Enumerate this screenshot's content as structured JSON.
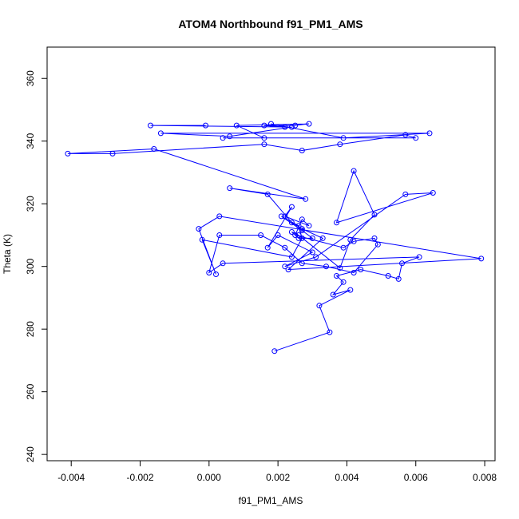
{
  "chart_data": {
    "type": "line",
    "title": "ATOM4 Northbound f91_PM1_AMS",
    "xlabel": "f91_PM1_AMS",
    "ylabel": "Theta (K)",
    "xlim": [
      -0.0047,
      0.0083
    ],
    "ylim": [
      238,
      370
    ],
    "xticks": [
      -0.004,
      -0.002,
      0.0,
      0.002,
      0.004,
      0.006,
      0.008
    ],
    "xtick_labels": [
      "-0.004",
      "-0.002",
      "0.000",
      "0.002",
      "0.004",
      "0.006",
      "0.008"
    ],
    "yticks": [
      240,
      260,
      280,
      300,
      320,
      340,
      360
    ],
    "ytick_labels": [
      "240",
      "260",
      "280",
      "300",
      "320",
      "340",
      "360"
    ],
    "grid": false,
    "series": [
      {
        "color": "#0000ff",
        "marker": "open-circle",
        "x": [
          0.0019,
          0.0035,
          0.0032,
          0.0041,
          0.0036,
          0.0039,
          0.0037,
          0.0044,
          0.0052,
          0.0055,
          0.0056,
          0.0061,
          0.0004,
          0.0,
          0.0003,
          0.0015,
          0.0022,
          0.0027,
          0.0034,
          0.0042,
          0.0049,
          0.0048,
          0.0042,
          0.0039,
          0.0025,
          0.0027,
          0.0029,
          0.0022,
          0.0024,
          0.0017,
          0.002,
          0.003,
          0.0022,
          0.0031,
          0.0057,
          0.0065,
          0.0037,
          0.0042,
          0.0048,
          0.0041,
          0.0038,
          0.0026,
          0.0024,
          0.0026,
          0.003,
          0.0027,
          0.0021,
          0.0026,
          0.0027,
          0.0024,
          -0.0002,
          0.0002,
          -0.0003,
          0.0003,
          0.0079,
          0.0023,
          0.0033,
          0.0027,
          0.0024,
          0.0017,
          0.0006,
          0.0028,
          -0.0016,
          -0.0041,
          -0.0028,
          0.0016,
          0.0027,
          0.0038,
          0.0057,
          0.006,
          0.0004,
          0.0016,
          0.0008,
          0.0029,
          0.0025,
          0.0016,
          0.0022,
          0.0018,
          0.0039,
          0.0064,
          -0.0014,
          0.0006,
          0.0024,
          -0.0017,
          -0.0001
        ],
        "y": [
          273,
          279,
          287.5,
          292.5,
          291,
          295,
          297,
          299,
          297,
          296,
          301,
          303,
          301,
          298,
          310,
          310,
          306,
          301,
          300,
          298,
          307,
          309,
          308,
          306,
          310,
          315,
          313,
          316,
          319,
          306,
          310,
          304.5,
          300,
          303,
          323,
          323.5,
          314,
          330.5,
          316.5,
          308.5,
          299.5,
          310,
          311,
          309,
          309,
          311.5,
          316,
          313,
          309,
          303,
          308.5,
          297.5,
          312,
          316,
          302.5,
          299,
          309,
          312,
          314,
          323,
          325,
          321.5,
          337.5,
          336,
          336,
          339,
          337,
          339,
          342,
          341,
          341,
          341,
          345,
          345.5,
          345,
          345,
          344.5,
          345.5,
          341,
          342.5,
          342.5,
          341.5,
          344.5,
          345,
          345
        ]
      }
    ]
  }
}
